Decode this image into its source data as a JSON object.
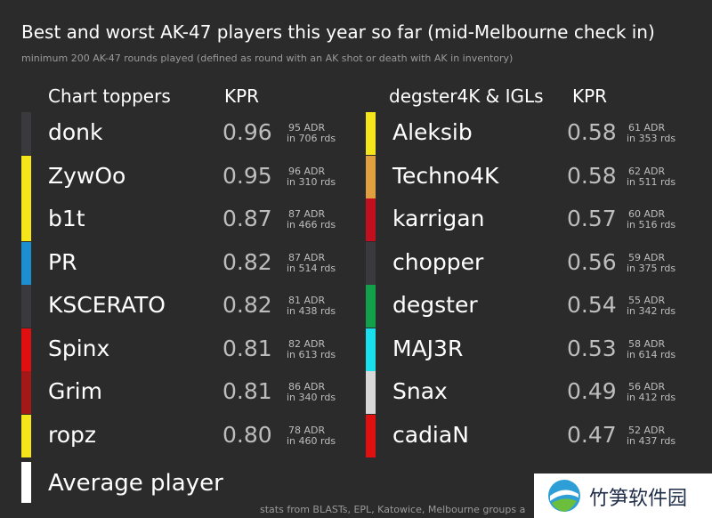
{
  "title": "Best and worst AK-47 players this year so far (mid-Melbourne check in)",
  "subtitle": "minimum 200 AK-47 rounds played (defined as round with an AK shot or death with AK in inventory)",
  "footer": "stats from BLASTs, EPL, Katowice, Melbourne groups a",
  "average_label": "Average player",
  "watermark": {
    "text": "竹笋软件园"
  },
  "chart_data": [
    {
      "type": "table",
      "headers": [
        "Chart toppers",
        "KPR"
      ],
      "rows": [
        {
          "player": "donk",
          "kpr": "0.96",
          "adr": "95 ADR",
          "rounds": "in 706 rds",
          "color": "#3a3a3e"
        },
        {
          "player": "ZywOo",
          "kpr": "0.95",
          "adr": "96 ADR",
          "rounds": "in 310 rds",
          "color": "#f5e61c"
        },
        {
          "player": "b1t",
          "kpr": "0.87",
          "adr": "87 ADR",
          "rounds": "in 466 rds",
          "color": "#f5e61c"
        },
        {
          "player": "PR",
          "kpr": "0.82",
          "adr": "87 ADR",
          "rounds": "in 514 rds",
          "color": "#1b8fd0"
        },
        {
          "player": "KSCERATO",
          "kpr": "0.82",
          "adr": "81 ADR",
          "rounds": "in 438 rds",
          "color": "#3a3a3e"
        },
        {
          "player": "Spinx",
          "kpr": "0.81",
          "adr": "82 ADR",
          "rounds": "in 613 rds",
          "color": "#e01010"
        },
        {
          "player": "Grim",
          "kpr": "0.81",
          "adr": "86 ADR",
          "rounds": "in 340 rds",
          "color": "#a51818"
        },
        {
          "player": "ropz",
          "kpr": "0.80",
          "adr": "78 ADR",
          "rounds": "in 460 rds",
          "color": "#f5e61c"
        }
      ]
    },
    {
      "type": "table",
      "headers": [
        "degster4K & IGLs",
        "KPR"
      ],
      "rows": [
        {
          "player": "Aleksib",
          "kpr": "0.58",
          "adr": "61 ADR",
          "rounds": "in 353 rds",
          "color": "#f5e61c"
        },
        {
          "player": "Techno4K",
          "kpr": "0.58",
          "adr": "62 ADR",
          "rounds": "in 511 rds",
          "color": "#e0a040"
        },
        {
          "player": "karrigan",
          "kpr": "0.57",
          "adr": "60 ADR",
          "rounds": "in 516 rds",
          "color": "#c01020"
        },
        {
          "player": "chopper",
          "kpr": "0.56",
          "adr": "59 ADR",
          "rounds": "in 375 rds",
          "color": "#3a3a3e"
        },
        {
          "player": "degster",
          "kpr": "0.54",
          "adr": "55 ADR",
          "rounds": "in 342 rds",
          "color": "#12a04a"
        },
        {
          "player": "MAJ3R",
          "kpr": "0.53",
          "adr": "58 ADR",
          "rounds": "in 614 rds",
          "color": "#18e0ec"
        },
        {
          "player": "Snax",
          "kpr": "0.49",
          "adr": "56 ADR",
          "rounds": "in 412 rds",
          "color": "#d8d8d8"
        },
        {
          "player": "cadiaN",
          "kpr": "0.47",
          "adr": "52 ADR",
          "rounds": "in 437 rds",
          "color": "#e01010"
        }
      ]
    }
  ]
}
